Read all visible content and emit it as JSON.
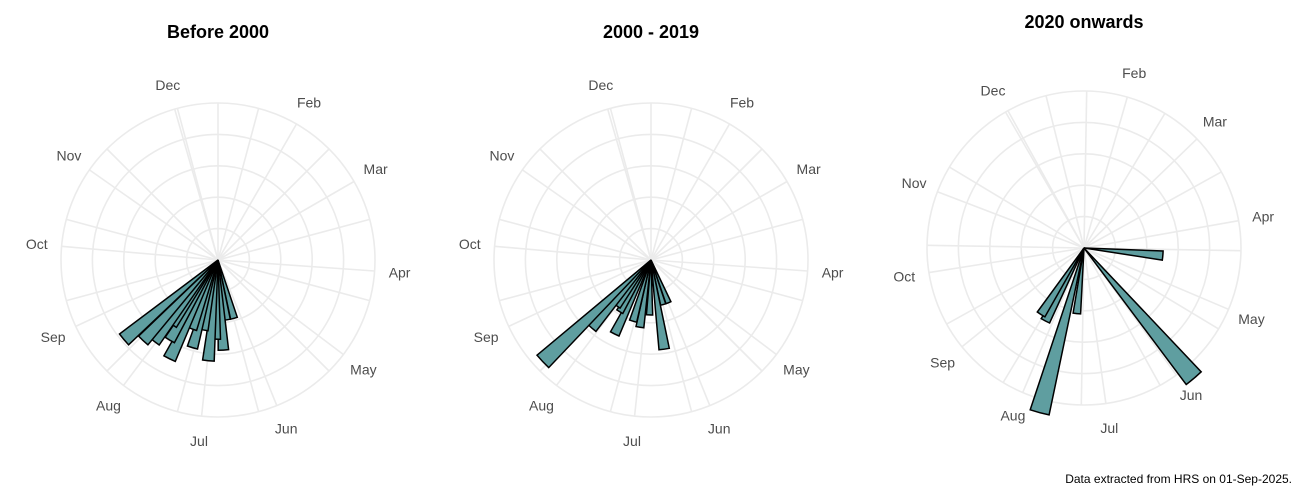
{
  "caption": "Data extracted from HRS on 01-Sep-2025.",
  "style": {
    "bar_fill": "#5f9ea0",
    "bar_stroke": "#000000",
    "grid": "#ebebeb",
    "label": "#4d4d4d"
  },
  "chart_data": [
    {
      "type": "polar-bar",
      "title": "Before 2000",
      "theta_labels": [
        "Dec",
        "Feb",
        "Mar",
        "Apr",
        "May",
        "Jun",
        "Jul",
        "Aug",
        "Sep",
        "Oct",
        "Nov"
      ],
      "bars": [
        {
          "date": "17-Jun",
          "value": 0.55
        },
        {
          "date": "24-Jun",
          "value": 0.55
        },
        {
          "date": "29-Jun",
          "value": 0.82
        },
        {
          "date": "04-Jul",
          "value": 0.72
        },
        {
          "date": "08-Jul",
          "value": 0.92
        },
        {
          "date": "14-Jul",
          "value": 0.65
        },
        {
          "date": "19-Jul",
          "value": 0.83
        },
        {
          "date": "23-Jul",
          "value": 0.67
        },
        {
          "date": "29-Jul",
          "value": 1.0
        },
        {
          "date": "03-Aug",
          "value": 0.85
        },
        {
          "date": "07-Aug",
          "value": 0.72
        },
        {
          "date": "10-Aug",
          "value": 0.94
        },
        {
          "date": "15-Aug",
          "value": 1.0
        },
        {
          "date": "22-Aug",
          "value": 1.12
        }
      ]
    },
    {
      "type": "polar-bar",
      "title": "2000 - 2019",
      "theta_labels": [
        "Dec",
        "Feb",
        "Mar",
        "Apr",
        "May",
        "Jun",
        "Jul",
        "Aug",
        "Sep",
        "Oct",
        "Nov"
      ],
      "bars": [
        {
          "date": "10-Jun",
          "value": 0.42
        },
        {
          "date": "17-Jun",
          "value": 0.42
        },
        {
          "date": "24-Jun",
          "value": 0.82
        },
        {
          "date": "04-Jul",
          "value": 0.5
        },
        {
          "date": "12-Jul",
          "value": 0.62
        },
        {
          "date": "19-Jul",
          "value": 0.58
        },
        {
          "date": "29-Jul",
          "value": 0.75
        },
        {
          "date": "03-Aug",
          "value": 0.55
        },
        {
          "date": "08-Aug",
          "value": 0.52
        },
        {
          "date": "13-Aug",
          "value": 0.82
        },
        {
          "date": "19-Aug",
          "value": 1.35
        }
      ]
    },
    {
      "type": "polar-bar",
      "title": "2020 onwards",
      "theta_labels": [
        "Dec",
        "Feb",
        "Mar",
        "Apr",
        "May",
        "Jun",
        "Jul",
        "Aug",
        "Sep",
        "Oct",
        "Nov"
      ],
      "bars": [
        {
          "date": "22-Apr",
          "value": 0.72
        },
        {
          "date": "06-Jun",
          "value": 1.55
        },
        {
          "date": "23-Jul",
          "value": 0.6
        },
        {
          "date": "01-Aug",
          "value": 1.55
        },
        {
          "date": "14-Aug",
          "value": 0.75
        },
        {
          "date": "19-Aug",
          "value": 0.72
        }
      ]
    }
  ]
}
